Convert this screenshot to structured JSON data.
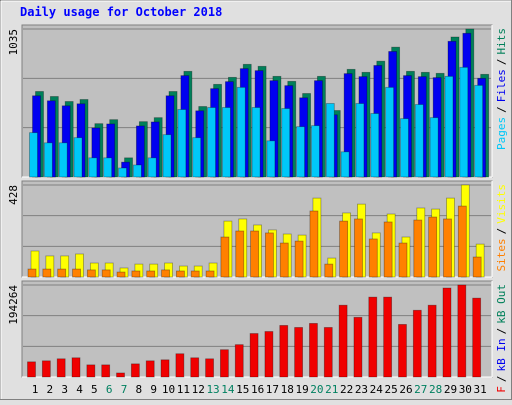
{
  "chart_data": [
    {
      "type": "bar",
      "title": "Daily usage for October 2018",
      "ylim": [
        0,
        1035
      ],
      "yticks": [
        1035
      ],
      "grid": true,
      "legend_separator": "/",
      "series": [
        {
          "name": "Pages",
          "color": "#00c8f8",
          "values": [
            310,
            239,
            239,
            275,
            134,
            134,
            63,
            84,
            134,
            296,
            472,
            275,
            486,
            486,
            627,
            486,
            253,
            479,
            352,
            359,
            514,
            176,
            514,
            444,
            627,
            408,
            507,
            415,
            704,
            767,
            641
          ]
        },
        {
          "name": "Files",
          "color": "#0000f0",
          "values": [
            568,
            533,
            498,
            512,
            343,
            371,
            104,
            357,
            385,
            568,
            709,
            463,
            618,
            667,
            758,
            744,
            674,
            639,
            554,
            674,
            435,
            723,
            702,
            780,
            878,
            709,
            702,
            695,
            949,
            1005,
            690
          ]
        },
        {
          "name": "Hits",
          "color": "#00805a",
          "values": [
            598,
            563,
            528,
            542,
            373,
            401,
            134,
            387,
            415,
            598,
            739,
            493,
            648,
            697,
            788,
            774,
            704,
            669,
            584,
            704,
            465,
            753,
            732,
            810,
            908,
            739,
            732,
            725,
            979,
            1035,
            718
          ]
        }
      ]
    },
    {
      "type": "bar",
      "ylim": [
        0,
        428
      ],
      "yticks": [
        428
      ],
      "grid": true,
      "legend_separator": "/",
      "series": [
        {
          "name": "Sites",
          "color": "#ff8000",
          "values": [
            37,
            37,
            37,
            37,
            33,
            33,
            23,
            28,
            28,
            33,
            28,
            28,
            28,
            186,
            214,
            214,
            205,
            158,
            167,
            307,
            60,
            260,
            270,
            177,
            256,
            158,
            265,
            279,
            270,
            330,
            93
          ]
        },
        {
          "name": "Visits",
          "color": "#ffff00",
          "values": [
            121,
            98,
            98,
            107,
            65,
            65,
            42,
            60,
            60,
            65,
            51,
            51,
            65,
            260,
            270,
            242,
            219,
            200,
            195,
            367,
            88,
            298,
            339,
            205,
            293,
            186,
            321,
            316,
            367,
            428,
            153
          ]
        }
      ]
    },
    {
      "type": "bar",
      "ylim": [
        0,
        194264
      ],
      "yticks": [
        194264
      ],
      "grid": true,
      "legend_separator": "/",
      "categories": [
        "1",
        "2",
        "3",
        "4",
        "5",
        "6",
        "7",
        "8",
        "9",
        "10",
        "11",
        "12",
        "13",
        "14",
        "15",
        "16",
        "17",
        "18",
        "19",
        "20",
        "21",
        "22",
        "23",
        "24",
        "25",
        "26",
        "27",
        "28",
        "29",
        "30",
        "31"
      ],
      "label_color": "#000000",
      "weekend_color": "#008060",
      "weekends": [
        "6",
        "7",
        "13",
        "14",
        "20",
        "21",
        "27",
        "28"
      ],
      "series": [
        {
          "name": "kB F",
          "color": "#f00000",
          "values": [
            32025,
            34160,
            38430,
            40565,
            25620,
            25620,
            8540,
            27755,
            34160,
            36295,
            49105,
            40565,
            38430,
            57645,
            68320,
            91805,
            96075,
            108885,
            104615,
            113155,
            104615,
            151585,
            125965,
            168665,
            168665,
            111020,
            140910,
            151585,
            187880,
            194264,
            166530
          ]
        },
        {
          "name": "kB In",
          "color": "#0000f0",
          "values": [
            0,
            0,
            0,
            0,
            0,
            0,
            0,
            0,
            0,
            0,
            0,
            0,
            0,
            0,
            0,
            0,
            0,
            0,
            0,
            0,
            0,
            0,
            0,
            0,
            0,
            0,
            0,
            0,
            0,
            0,
            0
          ]
        },
        {
          "name": "kB Out",
          "color": "#00805a",
          "values": [
            0,
            0,
            0,
            0,
            0,
            0,
            0,
            0,
            0,
            0,
            0,
            0,
            0,
            0,
            0,
            0,
            0,
            0,
            0,
            0,
            0,
            0,
            0,
            0,
            0,
            0,
            0,
            0,
            0,
            0,
            0
          ]
        }
      ]
    }
  ]
}
